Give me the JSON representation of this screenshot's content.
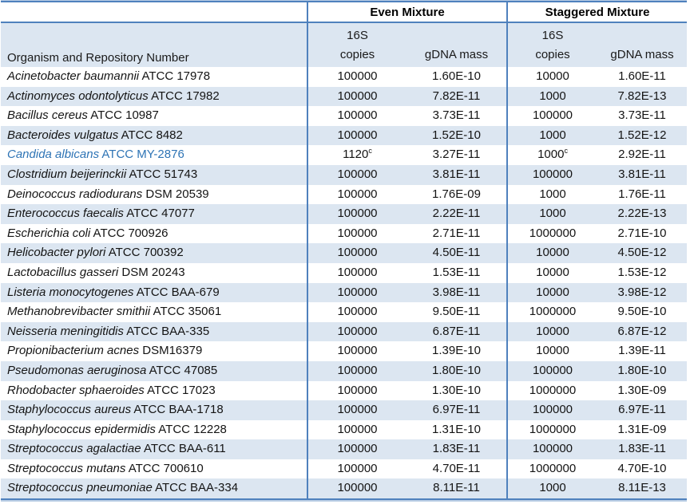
{
  "colors": {
    "border_blue": "#4f81bd",
    "border_light": "#b8cce4",
    "row_alt_blue": "#dce6f1",
    "highlight_text_blue": "#2e74b5"
  },
  "table": {
    "header": {
      "organism_col": "Organism and Repository Number",
      "even_mixture": "Even Mixture",
      "staggered_mixture": "Staggered Mixture",
      "copies_line1": "16S",
      "copies_line2": "copies",
      "gdna": "gDNA mass"
    },
    "rows": [
      {
        "name": "Acinetobacter baumannii",
        "repo": "ATCC 17978",
        "even_copies": "100000",
        "even_sup": "",
        "even_mass": "1.60E-10",
        "stag_copies": "10000",
        "stag_sup": "",
        "stag_mass": "1.60E-11",
        "highlight": false
      },
      {
        "name": "Actinomyces odontolyticus",
        "repo": "ATCC 17982",
        "even_copies": "100000",
        "even_sup": "",
        "even_mass": "7.82E-11",
        "stag_copies": "1000",
        "stag_sup": "",
        "stag_mass": "7.82E-13",
        "highlight": false
      },
      {
        "name": "Bacillus cereus",
        "repo": "ATCC 10987",
        "even_copies": "100000",
        "even_sup": "",
        "even_mass": "3.73E-11",
        "stag_copies": "100000",
        "stag_sup": "",
        "stag_mass": "3.73E-11",
        "highlight": false
      },
      {
        "name": "Bacteroides vulgatus",
        "repo": "ATCC 8482",
        "even_copies": "100000",
        "even_sup": "",
        "even_mass": "1.52E-10",
        "stag_copies": "1000",
        "stag_sup": "",
        "stag_mass": "1.52E-12",
        "highlight": false
      },
      {
        "name": "Candida albicans",
        "repo": "ATCC MY-2876",
        "even_copies": "1120",
        "even_sup": "c",
        "even_mass": "3.27E-11",
        "stag_copies": "1000",
        "stag_sup": "c",
        "stag_mass": "2.92E-11",
        "highlight": true
      },
      {
        "name": "Clostridium beijerinckii",
        "repo": "ATCC 51743",
        "even_copies": "100000",
        "even_sup": "",
        "even_mass": "3.81E-11",
        "stag_copies": "100000",
        "stag_sup": "",
        "stag_mass": "3.81E-11",
        "highlight": false
      },
      {
        "name": "Deinococcus radiodurans",
        "repo": "DSM 20539",
        "even_copies": "100000",
        "even_sup": "",
        "even_mass": "1.76E-09",
        "stag_copies": "1000",
        "stag_sup": "",
        "stag_mass": "1.76E-11",
        "highlight": false
      },
      {
        "name": "Enterococcus faecalis",
        "repo": "ATCC 47077",
        "even_copies": "100000",
        "even_sup": "",
        "even_mass": "2.22E-11",
        "stag_copies": "1000",
        "stag_sup": "",
        "stag_mass": "2.22E-13",
        "highlight": false
      },
      {
        "name": "Escherichia coli",
        "repo": "ATCC 700926",
        "even_copies": "100000",
        "even_sup": "",
        "even_mass": "2.71E-11",
        "stag_copies": "1000000",
        "stag_sup": "",
        "stag_mass": "2.71E-10",
        "highlight": false
      },
      {
        "name": "Helicobacter pylori",
        "repo": "ATCC 700392",
        "even_copies": "100000",
        "even_sup": "",
        "even_mass": "4.50E-11",
        "stag_copies": "10000",
        "stag_sup": "",
        "stag_mass": "4.50E-12",
        "highlight": false
      },
      {
        "name": "Lactobacillus gasseri",
        "repo": "DSM 20243",
        "even_copies": "100000",
        "even_sup": "",
        "even_mass": "1.53E-11",
        "stag_copies": "10000",
        "stag_sup": "",
        "stag_mass": "1.53E-12",
        "highlight": false
      },
      {
        "name": "Listeria monocytogenes",
        "repo": "ATCC BAA-679",
        "even_copies": "100000",
        "even_sup": "",
        "even_mass": "3.98E-11",
        "stag_copies": "10000",
        "stag_sup": "",
        "stag_mass": "3.98E-12",
        "highlight": false
      },
      {
        "name": "Methanobrevibacter smithii",
        "repo": "ATCC 35061",
        "even_copies": "100000",
        "even_sup": "",
        "even_mass": "9.50E-11",
        "stag_copies": "1000000",
        "stag_sup": "",
        "stag_mass": "9.50E-10",
        "highlight": false
      },
      {
        "name": "Neisseria meningitidis",
        "repo": "ATCC BAA-335",
        "even_copies": "100000",
        "even_sup": "",
        "even_mass": "6.87E-11",
        "stag_copies": "10000",
        "stag_sup": "",
        "stag_mass": "6.87E-12",
        "highlight": false
      },
      {
        "name": "Propionibacterium acnes",
        "repo": "DSM16379",
        "even_copies": "100000",
        "even_sup": "",
        "even_mass": "1.39E-10",
        "stag_copies": "10000",
        "stag_sup": "",
        "stag_mass": "1.39E-11",
        "highlight": false
      },
      {
        "name": "Pseudomonas aeruginosa",
        "repo": "ATCC 47085",
        "even_copies": "100000",
        "even_sup": "",
        "even_mass": "1.80E-10",
        "stag_copies": "100000",
        "stag_sup": "",
        "stag_mass": "1.80E-10",
        "highlight": false
      },
      {
        "name": "Rhodobacter sphaeroides",
        "repo": "ATCC 17023",
        "even_copies": "100000",
        "even_sup": "",
        "even_mass": "1.30E-10",
        "stag_copies": "1000000",
        "stag_sup": "",
        "stag_mass": "1.30E-09",
        "highlight": false
      },
      {
        "name": "Staphylococcus aureus",
        "repo": "ATCC BAA-1718",
        "even_copies": "100000",
        "even_sup": "",
        "even_mass": "6.97E-11",
        "stag_copies": "100000",
        "stag_sup": "",
        "stag_mass": "6.97E-11",
        "highlight": false
      },
      {
        "name": "Staphylococcus epidermidis",
        "repo": "ATCC 12228",
        "even_copies": "100000",
        "even_sup": "",
        "even_mass": "1.31E-10",
        "stag_copies": "1000000",
        "stag_sup": "",
        "stag_mass": "1.31E-09",
        "highlight": false
      },
      {
        "name": "Streptococcus agalactiae",
        "repo": "ATCC BAA-611",
        "even_copies": "100000",
        "even_sup": "",
        "even_mass": "1.83E-11",
        "stag_copies": "100000",
        "stag_sup": "",
        "stag_mass": "1.83E-11",
        "highlight": false
      },
      {
        "name": "Streptococcus mutans",
        "repo": "ATCC 700610",
        "even_copies": "100000",
        "even_sup": "",
        "even_mass": "4.70E-11",
        "stag_copies": "1000000",
        "stag_sup": "",
        "stag_mass": "4.70E-10",
        "highlight": false
      },
      {
        "name": "Streptococcus pneumoniae",
        "repo": "ATCC BAA-334",
        "even_copies": "100000",
        "even_sup": "",
        "even_mass": "8.11E-11",
        "stag_copies": "1000",
        "stag_sup": "",
        "stag_mass": "8.11E-13",
        "highlight": false
      }
    ]
  }
}
